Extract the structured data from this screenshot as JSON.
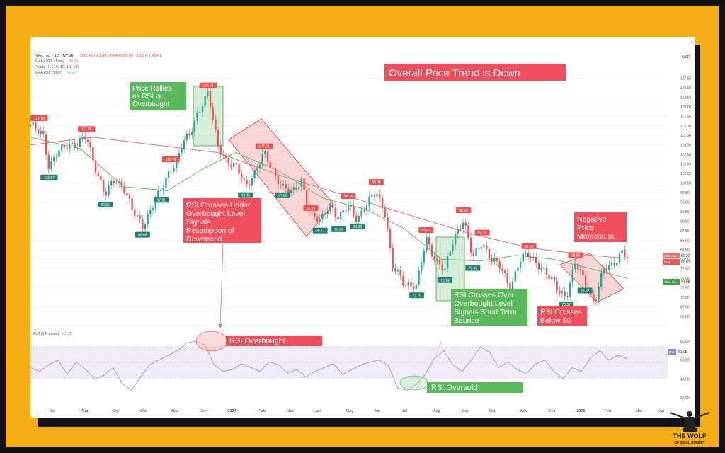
{
  "header": {
    "symbol_line": "Nike, Inc. · 1D · NYSE",
    "ohlc": "O81.49 H81.49 L79.40 C80.02 −1.15 (−1.42%)",
    "ind1": "SMA (200, close)",
    "ind1_val": "80.22",
    "ind2": "Pivots HL (10, 10, 10, 10)",
    "ind3": "SMA (50, close)",
    "ind3_val": "74.95",
    "currency": "USD"
  },
  "annotations": {
    "trend": "Overall Price Trend is Down",
    "rallies": [
      "Price Rallies",
      "as RSI is",
      "Overbought"
    ],
    "crosses_under": [
      "RSI Crosses Under",
      "Overbought Level",
      "Signals",
      "Resumption of",
      "Downtrend"
    ],
    "neg_momentum": [
      "Negative",
      "Price",
      "Momentum"
    ],
    "crosses_over": [
      "RSI Crosses Over",
      "Overbought Level",
      "Signals Short Term",
      "Bounce"
    ],
    "crosses_below": [
      "RSI Crosses",
      "Below 50"
    ],
    "rsi_overbought": "RSI Overbought",
    "rsi_oversold": "RSI Oversold"
  },
  "rsi_panel": {
    "label": "RSI (14, close)",
    "value": "61.05",
    "badge": "RSI",
    "ticks": [
      "80.00",
      "60.00",
      "40.00",
      "20.00"
    ]
  },
  "price_badges": {
    "sma200_label": "SMA·HA",
    "sma200_val": "80.22",
    "nke_label": "NKE",
    "nke_val": "80.02",
    "sma50_label": "SMA·HA",
    "sma50_val": "74.95"
  },
  "logo": {
    "line1": "THE WOLF",
    "line2": "OF WALL STREET"
  },
  "colors": {
    "up": "#26a69a",
    "down": "#ef5350",
    "sma200": "#e57373",
    "sma50": "#66bb6a",
    "rsi_line": "#9c7fc7",
    "annot_red": "#ef4f5d",
    "annot_green": "#5cb85c",
    "frame": "#f5ad14"
  },
  "chart_data": [
    {
      "type": "line",
      "title": "",
      "xlabel": "",
      "ylabel": "USD",
      "ylim": [
        65,
        130
      ],
      "y_ticks": [
        "127.50",
        "125.00",
        "122.50",
        "120.00",
        "117.50",
        "115.00",
        "112.50",
        "110.00",
        "107.50",
        "105.00",
        "102.50",
        "100.00",
        "97.50",
        "95.00",
        "92.50",
        "90.00",
        "87.50",
        "85.00",
        "82.50",
        "80.00",
        "77.50",
        "75.00",
        "72.50",
        "70.00",
        "67.50",
        "65.00"
      ],
      "x_ticks": [
        "Jul",
        "Aug",
        "Sep",
        "Oct",
        "Nov",
        "Dec",
        "2024",
        "Feb",
        "Mar",
        "Apr",
        "May",
        "Jun",
        "Jul",
        "Aug",
        "Sep",
        "Oct",
        "Nov",
        "Dec",
        "2025",
        "Feb",
        "Mar",
        "Ap"
      ],
      "x_labels_pos": [
        0.02,
        0.07,
        0.12,
        0.165,
        0.215,
        0.26,
        0.305,
        0.355,
        0.4,
        0.445,
        0.495,
        0.54,
        0.585,
        0.635,
        0.68,
        0.725,
        0.775,
        0.82,
        0.865,
        0.91,
        0.96,
        0.998
      ],
      "price_series": {
        "name": "NKE",
        "x": [
          0,
          0.02,
          0.03,
          0.045,
          0.06,
          0.075,
          0.09,
          0.105,
          0.12,
          0.135,
          0.15,
          0.165,
          0.18,
          0.195,
          0.21,
          0.225,
          0.235,
          0.245,
          0.255,
          0.265,
          0.275,
          0.285,
          0.3,
          0.315,
          0.33,
          0.345,
          0.36,
          0.375,
          0.39,
          0.405,
          0.42,
          0.435,
          0.45,
          0.465,
          0.48,
          0.495,
          0.51,
          0.525,
          0.54,
          0.555,
          0.57,
          0.58,
          0.6,
          0.62,
          0.635,
          0.65,
          0.665,
          0.68,
          0.695,
          0.71,
          0.725,
          0.74,
          0.755,
          0.77,
          0.785,
          0.8,
          0.815,
          0.83,
          0.845,
          0.86,
          0.875,
          0.89,
          0.905,
          0.92,
          0.935,
          0.95,
          0.958
        ],
        "y": [
          114.76,
          113.5,
          103.67,
          108,
          110.5,
          110,
          111.95,
          104,
          96.55,
          101,
          99,
          92,
          88.66,
          94,
          97.81,
          104,
          106,
          110.7,
          112,
          117,
          121,
          123.39,
          110,
          106,
          104,
          99.05,
          103,
          107.41,
          103,
          99,
          97,
          101,
          91.22,
          89.77,
          95,
          90.09,
          94.34,
          90.83,
          94,
          98.04,
          92,
          78,
          74,
          72.75,
          85.43,
          80,
          76.74,
          86,
          90.62,
          79.93,
          84.76,
          80,
          77.5,
          72.71,
          79.5,
          81.18,
          79,
          75.5,
          72.5,
          70.37,
          78.86,
          74,
          68.62,
          77,
          79,
          82,
          80.02
        ]
      },
      "sma200": {
        "name": "SMA (200, close)",
        "x": [
          0,
          0.1,
          0.2,
          0.3,
          0.4,
          0.5,
          0.6,
          0.7,
          0.8,
          0.9,
          0.958
        ],
        "y": [
          110,
          112,
          110,
          108,
          102,
          97,
          92,
          87,
          83,
          81,
          80.22
        ]
      },
      "sma50": {
        "name": "SMA (50, close)",
        "x": [
          0,
          0.08,
          0.15,
          0.22,
          0.28,
          0.33,
          0.4,
          0.47,
          0.54,
          0.6,
          0.66,
          0.72,
          0.78,
          0.84,
          0.9,
          0.958
        ],
        "y": [
          112,
          109,
          99,
          98,
          104,
          108,
          103,
          96,
          93,
          88,
          80,
          79.5,
          81,
          80,
          77.5,
          74.95
        ]
      },
      "pivot_highs": [
        {
          "x": 0.0,
          "label": "114.76"
        },
        {
          "x": 0.09,
          "label": "111.95"
        },
        {
          "x": 0.225,
          "label": "110.70"
        },
        {
          "x": 0.285,
          "label": "123.39"
        },
        {
          "x": 0.375,
          "label": "107.41"
        },
        {
          "x": 0.45,
          "label": "91.22"
        },
        {
          "x": 0.51,
          "label": "94.34"
        },
        {
          "x": 0.555,
          "label": "98.04"
        },
        {
          "x": 0.635,
          "label": "85.43"
        },
        {
          "x": 0.695,
          "label": "90.62"
        },
        {
          "x": 0.725,
          "label": "84.76"
        },
        {
          "x": 0.8,
          "label": "81.18"
        },
        {
          "x": 0.875,
          "label": "78.86"
        }
      ],
      "pivot_lows": [
        {
          "x": 0.03,
          "label": "103.67"
        },
        {
          "x": 0.12,
          "label": "96.55"
        },
        {
          "x": 0.18,
          "label": "88.66"
        },
        {
          "x": 0.21,
          "label": "97.81"
        },
        {
          "x": 0.345,
          "label": "99.05"
        },
        {
          "x": 0.405,
          "label": "97.06"
        },
        {
          "x": 0.465,
          "label": "89.77"
        },
        {
          "x": 0.495,
          "label": "90.09"
        },
        {
          "x": 0.525,
          "label": "90.83"
        },
        {
          "x": 0.62,
          "label": "72.75"
        },
        {
          "x": 0.665,
          "label": "76.74"
        },
        {
          "x": 0.71,
          "label": "79.93"
        },
        {
          "x": 0.77,
          "label": "72.71"
        },
        {
          "x": 0.86,
          "label": "70.37"
        },
        {
          "x": 0.89,
          "label": "68.62"
        }
      ]
    },
    {
      "type": "line",
      "title": "",
      "ylim": [
        20,
        80
      ],
      "series": [
        {
          "name": "RSI (14, close)",
          "values": [
            52,
            48,
            55,
            60,
            45,
            58,
            50,
            40,
            44,
            52,
            35,
            28,
            42,
            55,
            60,
            65,
            70,
            78,
            80,
            76,
            55,
            48,
            50,
            56,
            52,
            48,
            58,
            55,
            46,
            50,
            42,
            48,
            52,
            56,
            45,
            50,
            55,
            58,
            60,
            54,
            30,
            28,
            34,
            45,
            62,
            70,
            55,
            48,
            60,
            74,
            68,
            52,
            58,
            50,
            45,
            56,
            60,
            48,
            40,
            52,
            48,
            62,
            70,
            60,
            65,
            61.05
          ]
        }
      ]
    }
  ]
}
